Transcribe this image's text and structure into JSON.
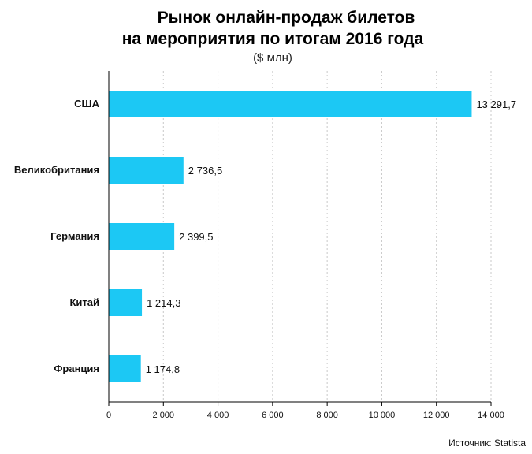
{
  "chart_data": {
    "type": "bar",
    "orientation": "horizontal",
    "title_line1": "Рынок онлайн-продаж билетов",
    "title_line2": "на мероприятия по итогам 2016 года",
    "subtitle": "($ млн)",
    "categories": [
      "США",
      "Великобритания",
      "Германия",
      "Китай",
      "Франция"
    ],
    "values": [
      13291.7,
      2736.5,
      2399.5,
      1214.3,
      1174.8
    ],
    "value_labels": [
      "13 291,7",
      "2 736,5",
      "2 399,5",
      "1 214,3",
      "1 174,8"
    ],
    "xlim": [
      0,
      14000
    ],
    "x_ticks": [
      0,
      2000,
      4000,
      6000,
      8000,
      10000,
      12000,
      14000
    ],
    "x_tick_labels": [
      "0",
      "2 000",
      "4 000",
      "6 000",
      "8 000",
      "10 000",
      "12 000",
      "14 000"
    ],
    "grid": "vertical",
    "bar_color": "#1cc8f4",
    "source": "Источник: Statista"
  }
}
